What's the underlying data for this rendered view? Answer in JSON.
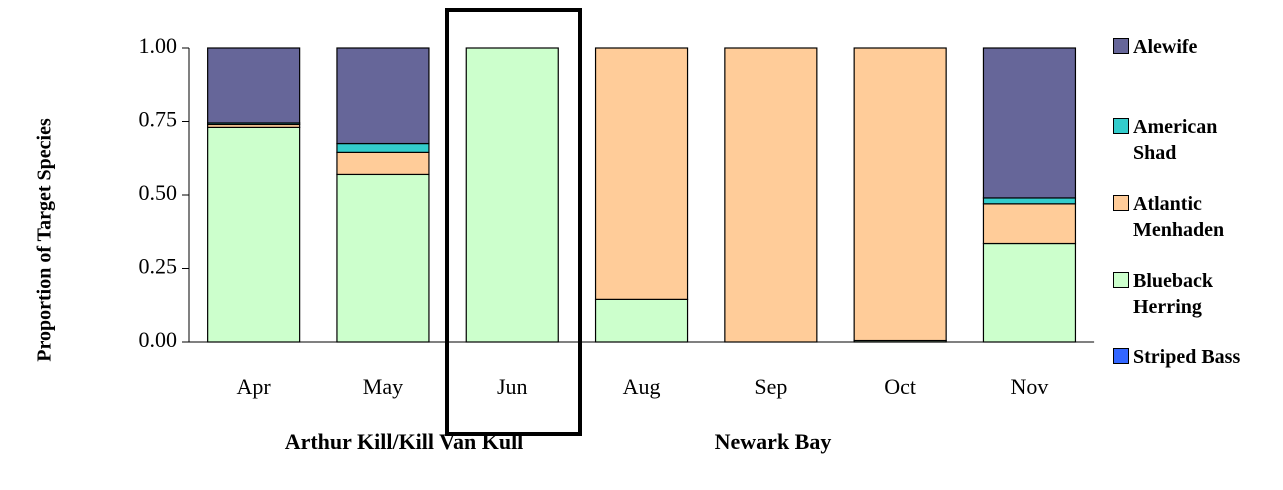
{
  "chart_data": {
    "type": "stacked_bar",
    "y_axis_label": "Proportion of Target Species",
    "categories": [
      "Apr",
      "May",
      "Jun",
      "Aug",
      "Sep",
      "Oct",
      "Nov"
    ],
    "group_labels": [
      "Arthur Kill/Kill Van Kull",
      "Newark Bay"
    ],
    "series": [
      {
        "name": "Striped Bass",
        "color": "#3366ff",
        "values": [
          0,
          0,
          0,
          0,
          0,
          0,
          0
        ]
      },
      {
        "name": "Blueback Herring",
        "color": "#ccffcc",
        "values": [
          0.73,
          0.57,
          1,
          0.145,
          0,
          0.005,
          0.335
        ]
      },
      {
        "name": "Atlantic Menhaden",
        "color": "#ffcc99",
        "values": [
          0.01,
          0.075,
          0,
          0.855,
          1,
          0.995,
          0.135
        ]
      },
      {
        "name": "American Shad",
        "color": "#33cccc",
        "values": [
          0.005,
          0.03,
          0,
          0,
          0,
          0,
          0.02
        ]
      },
      {
        "name": "Alewife",
        "color": "#666699",
        "values": [
          0.255,
          0.325,
          0,
          0,
          0,
          0,
          0.51
        ]
      }
    ],
    "ylim": [
      0,
      1
    ],
    "yticks": [
      {
        "value": 0,
        "label": "0.00"
      },
      {
        "value": 0.25,
        "label": "0.25"
      },
      {
        "value": 0.5,
        "label": "0.50"
      },
      {
        "value": 0.75,
        "label": "0.75"
      },
      {
        "value": 1,
        "label": "1.00"
      }
    ],
    "grid": false
  }
}
